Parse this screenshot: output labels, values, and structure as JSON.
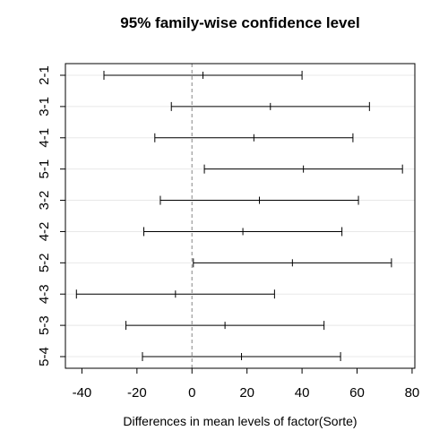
{
  "chart_data": {
    "type": "interval",
    "title": "95% family-wise confidence level",
    "xlabel": "Differences in mean levels of factor(Sorte)",
    "ylabel": "",
    "xlim": [
      -46,
      81
    ],
    "xticks": [
      -40,
      -20,
      0,
      20,
      40,
      60,
      80
    ],
    "reference_line": 0,
    "grid": "horizontal, light",
    "comparisons": [
      {
        "label": "2-1",
        "lwr": -32,
        "diff": 4,
        "upr": 40
      },
      {
        "label": "3-1",
        "lwr": -7.5,
        "diff": 28.5,
        "upr": 64.5
      },
      {
        "label": "4-1",
        "lwr": -13.5,
        "diff": 22.5,
        "upr": 58.5
      },
      {
        "label": "5-1",
        "lwr": 4.5,
        "diff": 40.5,
        "upr": 76.5
      },
      {
        "label": "3-2",
        "lwr": -11.5,
        "diff": 24.5,
        "upr": 60.5
      },
      {
        "label": "4-2",
        "lwr": -17.5,
        "diff": 18.5,
        "upr": 54.5
      },
      {
        "label": "5-2",
        "lwr": 0.5,
        "diff": 36.5,
        "upr": 72.5
      },
      {
        "label": "4-3",
        "lwr": -42,
        "diff": -6,
        "upr": 30
      },
      {
        "label": "5-3",
        "lwr": -24,
        "diff": 12,
        "upr": 48
      },
      {
        "label": "5-4",
        "lwr": -18,
        "diff": 18,
        "upr": 54
      }
    ]
  },
  "colors": {
    "interval": "#000000",
    "reference": "#9a9a9a",
    "grid": "#e8e8e8",
    "frame": "#000000"
  }
}
